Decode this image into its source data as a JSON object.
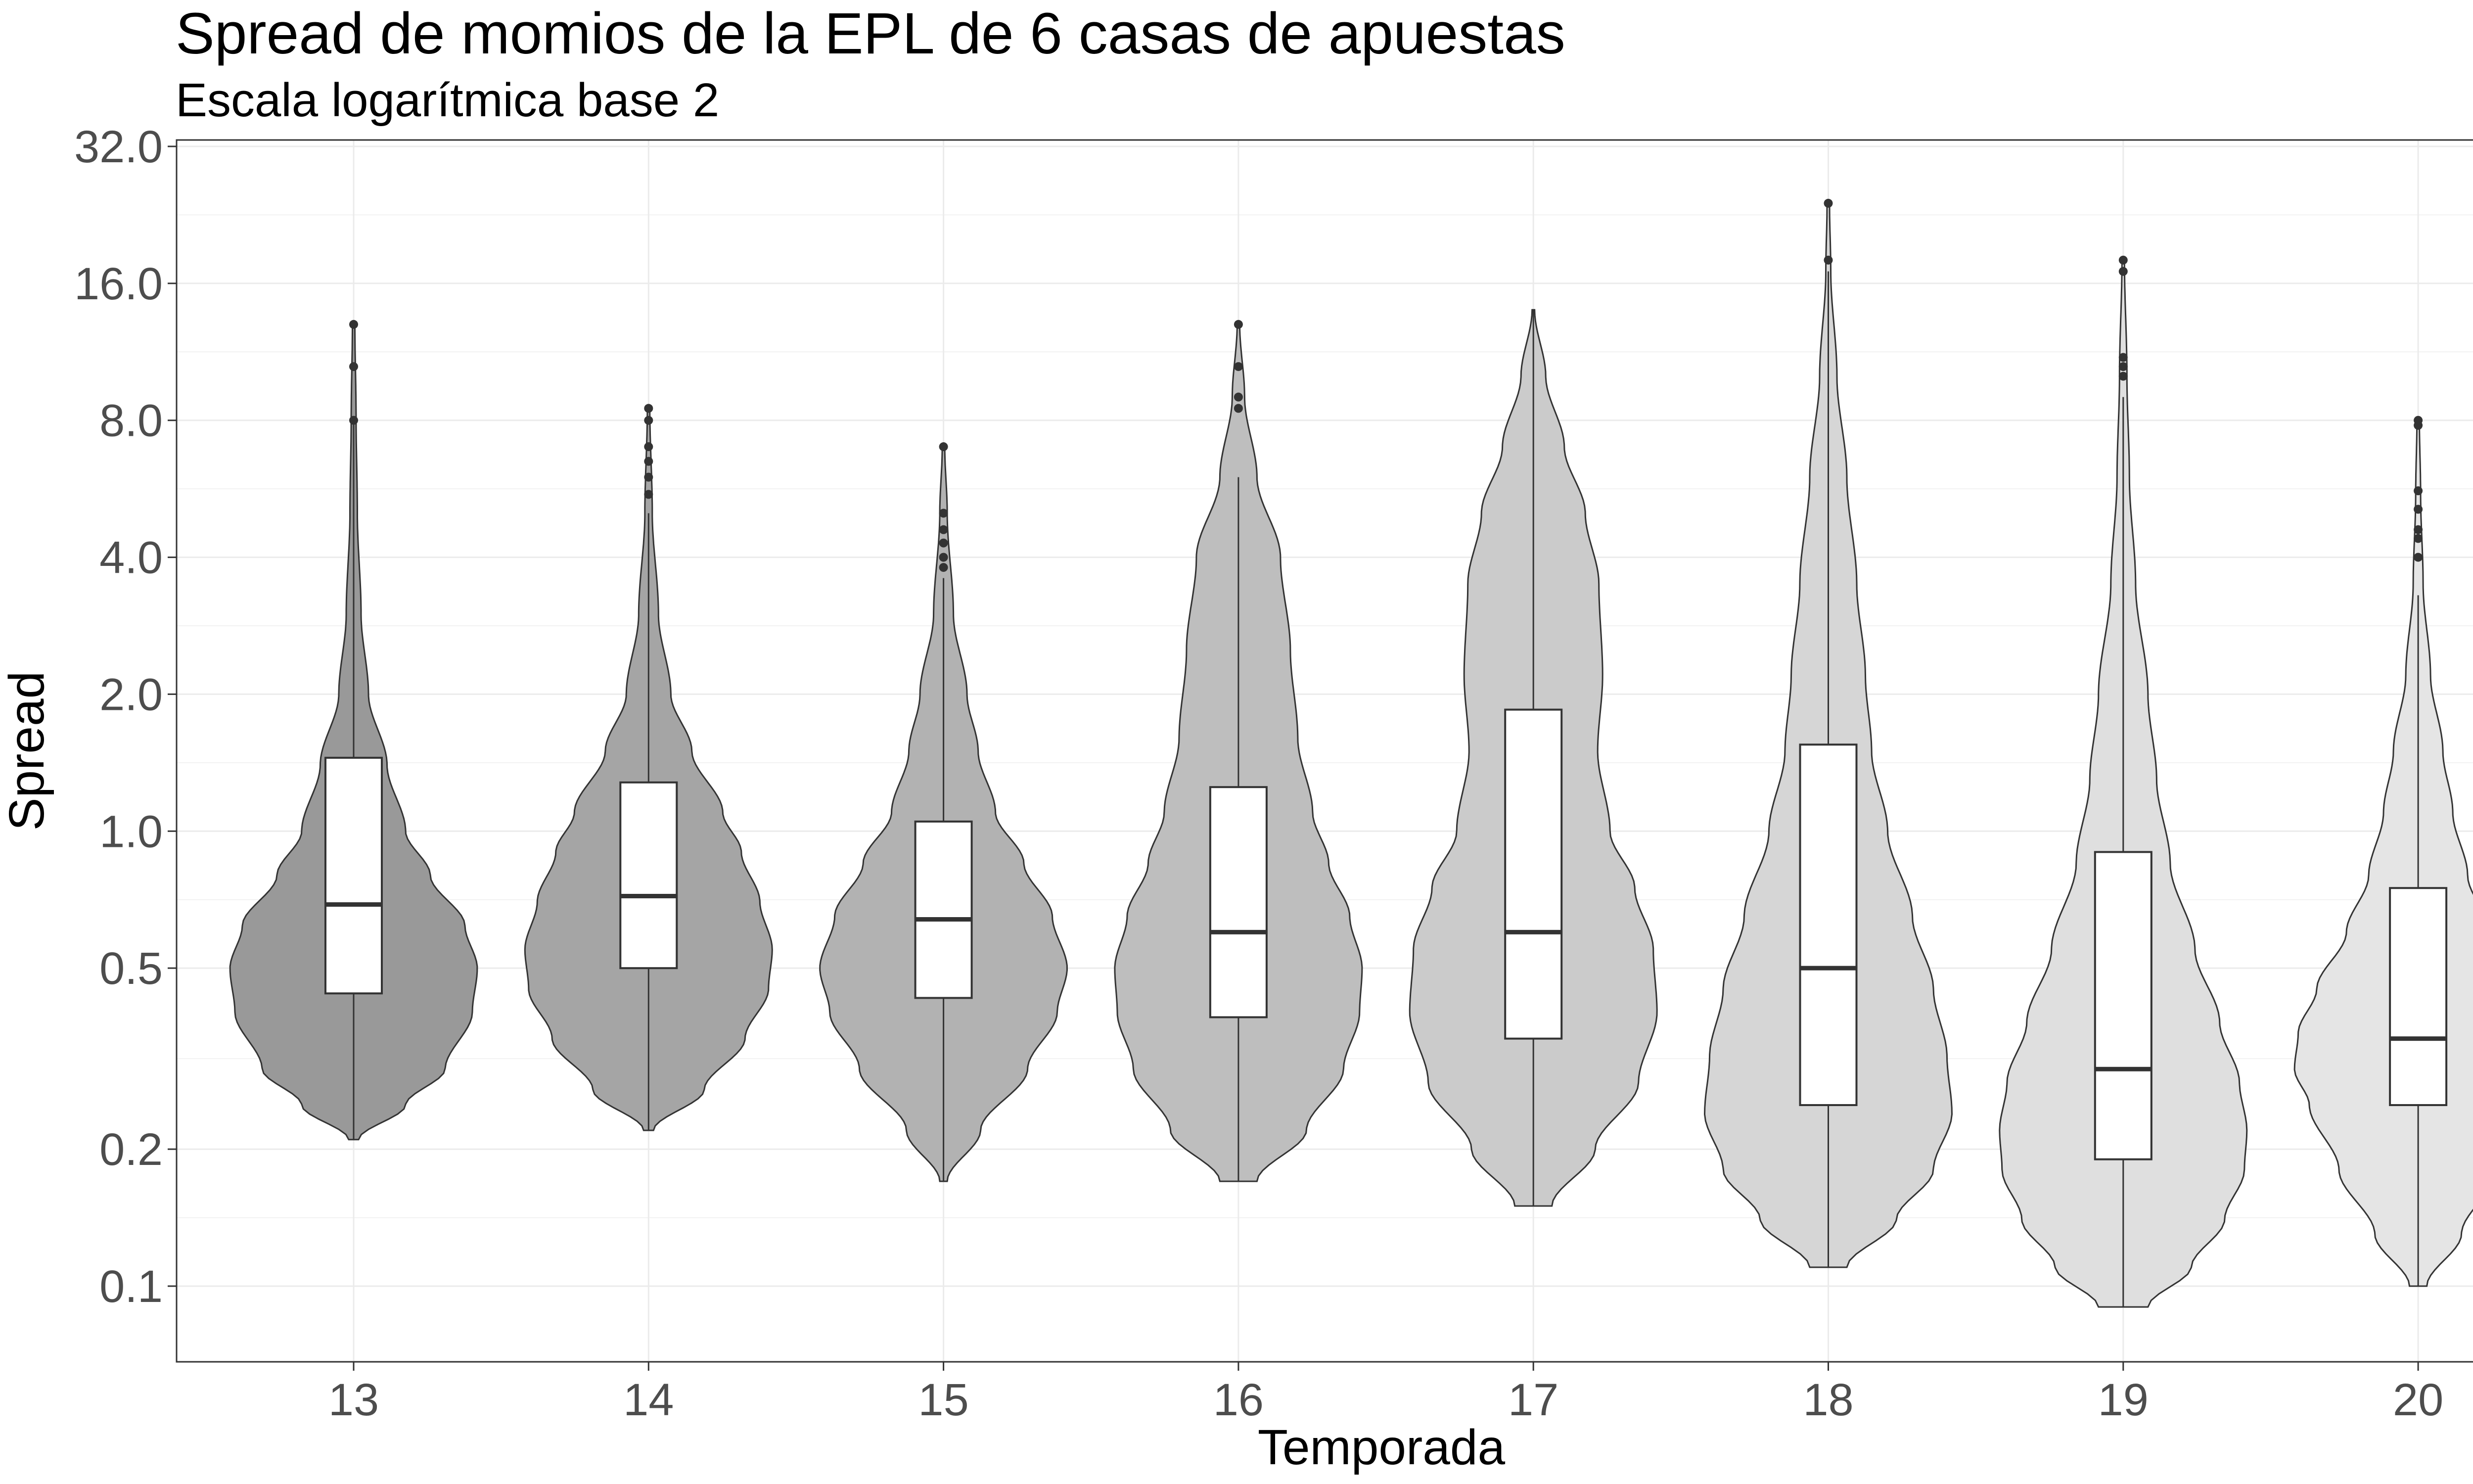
{
  "chart_data": {
    "type": "violin",
    "title": "Spread de momios de la EPL de 6 casas de apuestas",
    "subtitle": "Escala logarítmica base 2",
    "xlabel": "Temporada",
    "ylabel": "Spread",
    "y_scale": "log2",
    "ylim": [
      0.072,
      33
    ],
    "yticks": [
      0.1,
      0.2,
      0.5,
      1.0,
      2.0,
      4.0,
      8.0,
      16.0,
      32.0
    ],
    "ytick_labels": [
      "0.1",
      "0.2",
      "0.5",
      "1.0",
      "2.0",
      "4.0",
      "8.0",
      "16.0",
      "32.0"
    ],
    "categories": [
      "13",
      "14",
      "15",
      "16",
      "17",
      "18",
      "19",
      "20"
    ],
    "grid": true,
    "legend": "none",
    "fill_colors": [
      "#999999",
      "#a5a5a5",
      "#b2b2b2",
      "#bebebe",
      "#cbcbcb",
      "#d6d6d6",
      "#dfdfdf",
      "#e5e5e5"
    ],
    "box_fill": "#ffffff",
    "line_color": "#333333",
    "violins": [
      {
        "category": "13",
        "min": 0.21,
        "q1": 0.44,
        "median": 0.69,
        "q3": 1.45,
        "whisker_high": 8.0,
        "max": 13.0,
        "outliers": [
          13.0,
          10.5,
          8.0
        ],
        "density_profile": [
          [
            0.21,
            0.04
          ],
          [
            0.25,
            0.42
          ],
          [
            0.3,
            0.74
          ],
          [
            0.4,
            0.96
          ],
          [
            0.5,
            1.0
          ],
          [
            0.62,
            0.9
          ],
          [
            0.8,
            0.62
          ],
          [
            1.0,
            0.42
          ],
          [
            1.4,
            0.27
          ],
          [
            2.0,
            0.12
          ],
          [
            3.0,
            0.06
          ],
          [
            5.0,
            0.03
          ],
          [
            8.0,
            0.02
          ],
          [
            13.0,
            0.01
          ]
        ]
      },
      {
        "category": "14",
        "min": 0.22,
        "q1": 0.5,
        "median": 0.72,
        "q3": 1.28,
        "whisker_high": 5.0,
        "max": 8.5,
        "outliers": [
          8.5,
          8.0,
          7.0,
          6.5,
          6.0,
          5.5
        ],
        "density_profile": [
          [
            0.22,
            0.04
          ],
          [
            0.27,
            0.45
          ],
          [
            0.35,
            0.78
          ],
          [
            0.45,
            0.97
          ],
          [
            0.55,
            1.0
          ],
          [
            0.7,
            0.9
          ],
          [
            0.9,
            0.75
          ],
          [
            1.1,
            0.6
          ],
          [
            1.5,
            0.35
          ],
          [
            2.0,
            0.18
          ],
          [
            3.0,
            0.08
          ],
          [
            5.0,
            0.03
          ],
          [
            8.5,
            0.01
          ]
        ]
      },
      {
        "category": "15",
        "min": 0.17,
        "q1": 0.43,
        "median": 0.64,
        "q3": 1.05,
        "whisker_high": 3.6,
        "max": 7.0,
        "outliers": [
          7.0,
          5.0,
          4.6,
          4.3,
          4.0,
          3.8
        ],
        "density_profile": [
          [
            0.17,
            0.03
          ],
          [
            0.22,
            0.3
          ],
          [
            0.3,
            0.68
          ],
          [
            0.4,
            0.92
          ],
          [
            0.5,
            1.0
          ],
          [
            0.65,
            0.88
          ],
          [
            0.85,
            0.65
          ],
          [
            1.1,
            0.42
          ],
          [
            1.5,
            0.28
          ],
          [
            2.0,
            0.19
          ],
          [
            3.0,
            0.08
          ],
          [
            5.0,
            0.03
          ],
          [
            7.0,
            0.01
          ]
        ]
      },
      {
        "category": "16",
        "min": 0.17,
        "q1": 0.39,
        "median": 0.6,
        "q3": 1.25,
        "whisker_high": 6.0,
        "max": 13.0,
        "outliers": [
          13.0,
          10.5,
          9.0,
          8.5
        ],
        "density_profile": [
          [
            0.17,
            0.15
          ],
          [
            0.22,
            0.55
          ],
          [
            0.3,
            0.85
          ],
          [
            0.4,
            0.98
          ],
          [
            0.5,
            1.0
          ],
          [
            0.65,
            0.9
          ],
          [
            0.85,
            0.73
          ],
          [
            1.1,
            0.6
          ],
          [
            1.6,
            0.48
          ],
          [
            2.5,
            0.42
          ],
          [
            4.0,
            0.34
          ],
          [
            6.0,
            0.15
          ],
          [
            9.0,
            0.05
          ],
          [
            13.0,
            0.01
          ]
        ]
      },
      {
        "category": "17",
        "min": 0.15,
        "q1": 0.35,
        "median": 0.6,
        "q3": 1.85,
        "whisker_high": 14.0,
        "max": 14.0,
        "outliers": [],
        "density_profile": [
          [
            0.15,
            0.15
          ],
          [
            0.2,
            0.5
          ],
          [
            0.28,
            0.85
          ],
          [
            0.4,
            1.0
          ],
          [
            0.55,
            0.97
          ],
          [
            0.75,
            0.82
          ],
          [
            1.0,
            0.62
          ],
          [
            1.5,
            0.52
          ],
          [
            2.2,
            0.56
          ],
          [
            3.5,
            0.53
          ],
          [
            5.0,
            0.42
          ],
          [
            7.0,
            0.25
          ],
          [
            10.0,
            0.1
          ],
          [
            14.0,
            0.01
          ]
        ]
      },
      {
        "category": "18",
        "min": 0.11,
        "q1": 0.25,
        "median": 0.5,
        "q3": 1.55,
        "whisker_high": 17.0,
        "max": 24.0,
        "outliers": [
          24.0,
          18.0
        ],
        "density_profile": [
          [
            0.11,
            0.15
          ],
          [
            0.14,
            0.55
          ],
          [
            0.18,
            0.85
          ],
          [
            0.24,
            1.0
          ],
          [
            0.32,
            0.96
          ],
          [
            0.45,
            0.85
          ],
          [
            0.65,
            0.68
          ],
          [
            1.0,
            0.48
          ],
          [
            1.5,
            0.35
          ],
          [
            2.2,
            0.3
          ],
          [
            3.5,
            0.23
          ],
          [
            6.0,
            0.15
          ],
          [
            10.0,
            0.07
          ],
          [
            17.0,
            0.02
          ],
          [
            24.0,
            0.01
          ]
        ]
      },
      {
        "category": "19",
        "min": 0.09,
        "q1": 0.19,
        "median": 0.3,
        "q3": 0.9,
        "whisker_high": 9.0,
        "max": 18.0,
        "outliers": [
          18.0,
          17.0,
          11.0,
          10.5,
          10.0
        ],
        "density_profile": [
          [
            0.09,
            0.2
          ],
          [
            0.11,
            0.55
          ],
          [
            0.14,
            0.82
          ],
          [
            0.18,
            0.98
          ],
          [
            0.22,
            1.0
          ],
          [
            0.28,
            0.94
          ],
          [
            0.38,
            0.78
          ],
          [
            0.55,
            0.58
          ],
          [
            0.85,
            0.38
          ],
          [
            1.3,
            0.27
          ],
          [
            2.0,
            0.2
          ],
          [
            3.5,
            0.1
          ],
          [
            6.0,
            0.05
          ],
          [
            10.0,
            0.03
          ],
          [
            18.0,
            0.01
          ]
        ]
      },
      {
        "category": "20",
        "min": 0.1,
        "q1": 0.25,
        "median": 0.35,
        "q3": 0.75,
        "whisker_high": 3.3,
        "max": 8.0,
        "outliers": [
          8.0,
          7.8,
          5.6,
          5.1,
          4.6,
          4.4,
          4.0
        ],
        "density_profile": [
          [
            0.1,
            0.07
          ],
          [
            0.13,
            0.35
          ],
          [
            0.18,
            0.64
          ],
          [
            0.25,
            0.88
          ],
          [
            0.3,
            1.0
          ],
          [
            0.36,
            0.97
          ],
          [
            0.45,
            0.82
          ],
          [
            0.6,
            0.58
          ],
          [
            0.8,
            0.4
          ],
          [
            1.1,
            0.28
          ],
          [
            1.5,
            0.2
          ],
          [
            2.2,
            0.1
          ],
          [
            3.5,
            0.04
          ],
          [
            5.5,
            0.02
          ],
          [
            8.0,
            0.01
          ]
        ]
      }
    ]
  }
}
